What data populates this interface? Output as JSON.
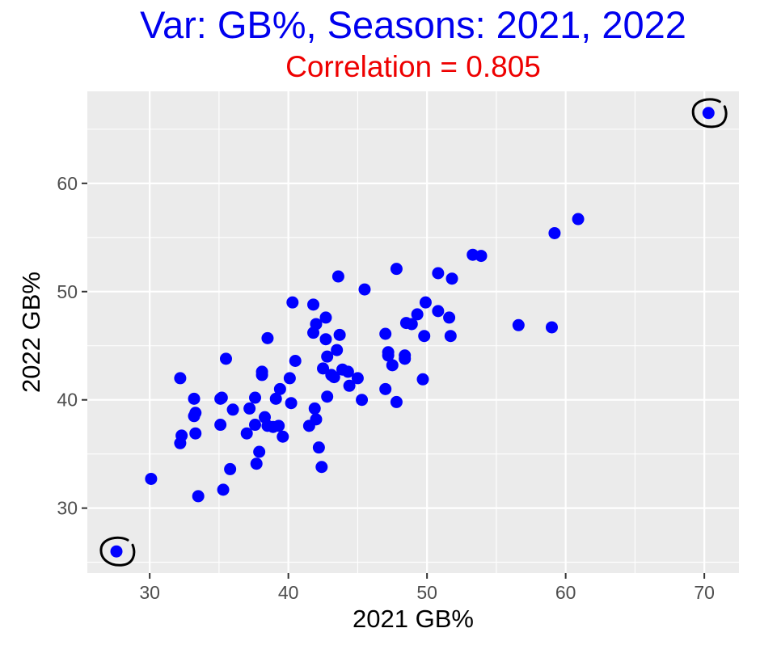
{
  "chart_data": {
    "type": "scatter",
    "title": "Var: GB%, Seasons: 2021, 2022",
    "subtitle": "Correlation = 0.805",
    "xlabel": "2021 GB%",
    "ylabel": "2022 GB%",
    "xlim": [
      25.5,
      72.5
    ],
    "ylim": [
      24,
      68.5
    ],
    "xticks": [
      30,
      40,
      50,
      60,
      70
    ],
    "yticks": [
      30,
      40,
      50,
      60
    ],
    "grid": true,
    "legend": "none",
    "colors": {
      "title": "#0000EE",
      "subtitle": "#EE0000",
      "points": "#0000FF",
      "panel": "#EBEBEB",
      "grid": "#FFFFFF",
      "annotation": "#000000"
    },
    "highlighted_points": [
      [
        27.6,
        26.0
      ],
      [
        70.3,
        66.5
      ]
    ],
    "points": [
      [
        27.6,
        26.0
      ],
      [
        30.1,
        32.7
      ],
      [
        32.2,
        42.0
      ],
      [
        32.2,
        36.0
      ],
      [
        32.3,
        36.7
      ],
      [
        33.2,
        40.1
      ],
      [
        33.2,
        38.5
      ],
      [
        33.3,
        38.8
      ],
      [
        33.3,
        36.9
      ],
      [
        33.5,
        31.1
      ],
      [
        35.1,
        40.1
      ],
      [
        35.1,
        37.7
      ],
      [
        35.2,
        40.2
      ],
      [
        35.3,
        31.7
      ],
      [
        35.5,
        43.8
      ],
      [
        35.8,
        33.6
      ],
      [
        36.0,
        39.1
      ],
      [
        37.0,
        36.9
      ],
      [
        37.2,
        39.2
      ],
      [
        37.6,
        40.2
      ],
      [
        37.6,
        37.7
      ],
      [
        37.7,
        34.1
      ],
      [
        37.9,
        35.2
      ],
      [
        38.1,
        42.6
      ],
      [
        38.1,
        42.3
      ],
      [
        38.3,
        38.4
      ],
      [
        38.5,
        37.6
      ],
      [
        38.5,
        45.7
      ],
      [
        38.9,
        37.5
      ],
      [
        39.1,
        40.1
      ],
      [
        39.3,
        37.6
      ],
      [
        39.4,
        41.0
      ],
      [
        39.6,
        36.6
      ],
      [
        40.1,
        42.0
      ],
      [
        40.2,
        39.7
      ],
      [
        40.3,
        49.0
      ],
      [
        40.5,
        43.6
      ],
      [
        41.5,
        37.6
      ],
      [
        41.8,
        48.8
      ],
      [
        41.8,
        46.2
      ],
      [
        41.9,
        39.2
      ],
      [
        42.0,
        47.0
      ],
      [
        42.0,
        38.2
      ],
      [
        42.2,
        35.6
      ],
      [
        42.4,
        33.8
      ],
      [
        42.5,
        42.9
      ],
      [
        42.7,
        47.6
      ],
      [
        42.7,
        45.6
      ],
      [
        42.8,
        44.0
      ],
      [
        42.8,
        40.3
      ],
      [
        43.1,
        42.3
      ],
      [
        43.3,
        42.1
      ],
      [
        43.5,
        44.6
      ],
      [
        43.6,
        51.4
      ],
      [
        43.7,
        46.0
      ],
      [
        43.9,
        42.8
      ],
      [
        44.3,
        42.6
      ],
      [
        44.4,
        41.3
      ],
      [
        45.0,
        42.0
      ],
      [
        45.3,
        40.0
      ],
      [
        45.5,
        50.2
      ],
      [
        47.0,
        46.1
      ],
      [
        47.0,
        41.0
      ],
      [
        47.2,
        44.4
      ],
      [
        47.2,
        44.1
      ],
      [
        47.5,
        43.2
      ],
      [
        47.8,
        52.1
      ],
      [
        47.8,
        39.8
      ],
      [
        48.4,
        44.1
      ],
      [
        48.4,
        43.8
      ],
      [
        48.5,
        47.1
      ],
      [
        48.9,
        47.0
      ],
      [
        49.3,
        47.9
      ],
      [
        49.7,
        41.9
      ],
      [
        49.8,
        45.9
      ],
      [
        49.9,
        49.0
      ],
      [
        50.8,
        51.7
      ],
      [
        50.8,
        48.2
      ],
      [
        51.6,
        47.6
      ],
      [
        51.7,
        45.9
      ],
      [
        51.8,
        51.2
      ],
      [
        53.3,
        53.4
      ],
      [
        53.9,
        53.3
      ],
      [
        56.6,
        46.9
      ],
      [
        59.0,
        46.7
      ],
      [
        59.2,
        55.4
      ],
      [
        60.9,
        56.7
      ],
      [
        70.3,
        66.5
      ]
    ]
  }
}
